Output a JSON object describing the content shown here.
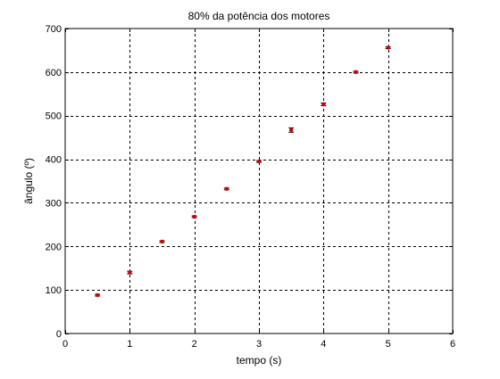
{
  "chart_data": {
    "type": "scatter",
    "title": "80% da potência dos motores",
    "xlabel": "tempo (s)",
    "ylabel": "ângulo (º)",
    "xlim": [
      0,
      6
    ],
    "ylim": [
      0,
      700
    ],
    "xticks": [
      0,
      1,
      2,
      3,
      4,
      5,
      6
    ],
    "yticks": [
      0,
      100,
      200,
      300,
      400,
      500,
      600,
      700
    ],
    "xtick_labels": [
      "0",
      "1",
      "2",
      "3",
      "4",
      "5",
      "6"
    ],
    "ytick_labels": [
      "0",
      "100",
      "200",
      "300",
      "400",
      "500",
      "600",
      "700"
    ],
    "grid": true,
    "series": [
      {
        "x": [
          0.5,
          1.0,
          1.5,
          2.0,
          2.5,
          3.0,
          3.5,
          4.0,
          4.5,
          5.0
        ],
        "y": [
          88,
          140,
          211,
          268,
          332,
          395,
          467,
          526,
          600,
          656
        ],
        "error": [
          2,
          3,
          2,
          2,
          2,
          2,
          5,
          3,
          2,
          2
        ],
        "color": "#cc0000",
        "error_color": "#000000"
      }
    ]
  }
}
